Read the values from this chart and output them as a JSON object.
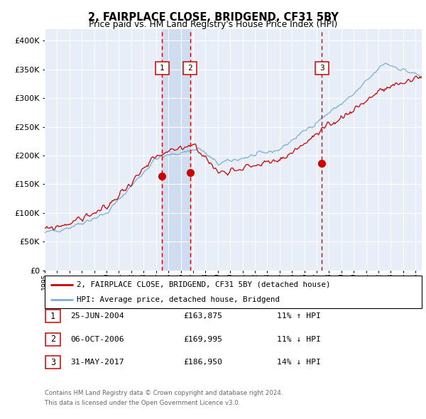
{
  "title": "2, FAIRPLACE CLOSE, BRIDGEND, CF31 5BY",
  "subtitle": "Price paid vs. HM Land Registry's House Price Index (HPI)",
  "legend_label_red": "2, FAIRPLACE CLOSE, BRIDGEND, CF31 5BY (detached house)",
  "legend_label_blue": "HPI: Average price, detached house, Bridgend",
  "transactions": [
    {
      "num": 1,
      "date": "25-JUN-2004",
      "price": 163875,
      "pct": "11%",
      "dir": "↑"
    },
    {
      "num": 2,
      "date": "06-OCT-2006",
      "price": 169995,
      "pct": "11%",
      "dir": "↓"
    },
    {
      "num": 3,
      "date": "31-MAY-2017",
      "price": 186950,
      "pct": "14%",
      "dir": "↓"
    }
  ],
  "transaction_dates_decimal": [
    2004.483,
    2006.756,
    2017.414
  ],
  "transaction_prices": [
    163875,
    169995,
    186950
  ],
  "footnote1": "Contains HM Land Registry data © Crown copyright and database right 2024.",
  "footnote2": "This data is licensed under the Open Government Licence v3.0.",
  "xlim": [
    1995.0,
    2025.5
  ],
  "ylim": [
    0,
    420000
  ],
  "yticks": [
    0,
    50000,
    100000,
    150000,
    200000,
    250000,
    300000,
    350000,
    400000
  ],
  "xticks": [
    1995,
    1996,
    1997,
    1998,
    1999,
    2000,
    2001,
    2002,
    2003,
    2004,
    2005,
    2006,
    2007,
    2008,
    2009,
    2010,
    2011,
    2012,
    2013,
    2014,
    2015,
    2016,
    2017,
    2018,
    2019,
    2020,
    2021,
    2022,
    2023,
    2024,
    2025
  ],
  "bg_color": "#e8eef8",
  "grid_color": "#ffffff",
  "red_line_color": "#cc0000",
  "blue_line_color": "#7aaed6",
  "shaded_region_color": "#d0ddf0",
  "dashed_line_color": "#cc0000"
}
